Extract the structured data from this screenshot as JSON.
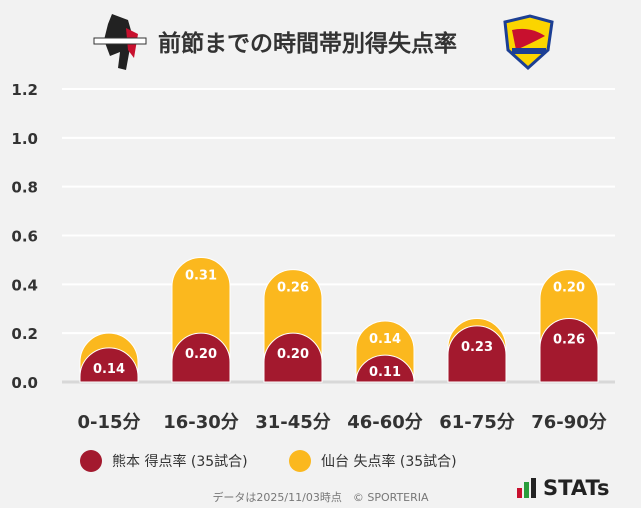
{
  "title": "前節までの時間帯別得失点率",
  "logos": {
    "home": "ROASSO KUMAMOTO",
    "away": "VEGALTA SENDAI"
  },
  "colors": {
    "home": "#a3192e",
    "away": "#fbb81e"
  },
  "chart_data": {
    "type": "bar",
    "stacked": true,
    "title": "前節までの時間帯別得失点率",
    "categories": [
      "0-15分",
      "16-30分",
      "31-45分",
      "46-60分",
      "61-75分",
      "76-90分"
    ],
    "series": [
      {
        "name": "熊本 得点率 (35試合)",
        "values": [
          0.14,
          0.2,
          0.2,
          0.11,
          0.23,
          0.26
        ],
        "labels": [
          "0.14",
          "0.20",
          "0.20",
          "0.11",
          "0.23",
          "0.26"
        ]
      },
      {
        "name": "仙台 失点率 (35試合)",
        "values": [
          0.06,
          0.31,
          0.26,
          0.14,
          0.03,
          0.2
        ],
        "labels": [
          "",
          "0.31",
          "0.26",
          "0.14",
          "",
          "0.20"
        ]
      }
    ],
    "yticks": [
      "0.0",
      "0.2",
      "0.4",
      "0.6",
      "0.8",
      "1.0",
      "1.2"
    ],
    "ylim": [
      0,
      1.2
    ],
    "grid": true,
    "legend": "bottom"
  },
  "footer": "データは2025/11/03時点　© SPORTERIA",
  "brand": "STATs"
}
